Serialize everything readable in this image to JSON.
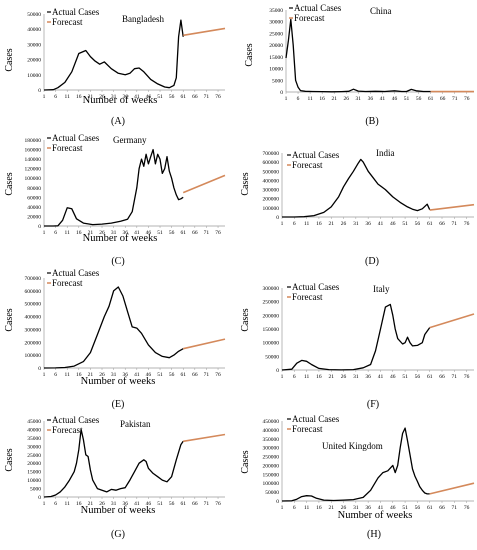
{
  "colors": {
    "actual": "#000000",
    "forecast": "#d4895b",
    "axis": "#9a9a9a"
  },
  "chart_data": [
    {
      "type": "line",
      "label": "(A)",
      "title": "Bangladesh",
      "ylabel": "Cases",
      "xlabel": "Number of weeks",
      "yticks": [
        0,
        10000,
        20000,
        30000,
        40000,
        50000
      ],
      "ylim": [
        0,
        50000
      ],
      "xticks": [
        1,
        6,
        11,
        16,
        21,
        26,
        31,
        36,
        41,
        46,
        51,
        56,
        61,
        66,
        71,
        76
      ],
      "xlim": [
        1,
        79
      ],
      "legend": [
        "Actual Cases",
        "Forecast"
      ],
      "series": [
        {
          "name": "Actual Cases",
          "x": [
            1,
            5,
            7,
            10,
            13,
            16,
            19,
            21,
            23,
            25,
            27,
            30,
            33,
            36,
            38,
            40,
            42,
            44,
            47,
            50,
            53,
            55,
            57,
            58,
            59,
            60,
            61
          ],
          "y": [
            0,
            200,
            1500,
            5000,
            12000,
            24000,
            26000,
            22000,
            19000,
            17000,
            18500,
            14000,
            11000,
            10000,
            11000,
            14000,
            14500,
            12000,
            7000,
            4000,
            2000,
            1500,
            3000,
            8000,
            35000,
            46000,
            35000
          ]
        },
        {
          "name": "Forecast",
          "x": [
            61,
            79
          ],
          "y": [
            36000,
            40500
          ]
        }
      ]
    },
    {
      "type": "line",
      "label": "(B)",
      "title": "China",
      "ylabel": "Cases",
      "xlabel": "",
      "yticks": [
        0,
        5000,
        10000,
        15000,
        20000,
        25000,
        30000,
        35000
      ],
      "ylim": [
        0,
        35000
      ],
      "xticks": [
        1,
        6,
        11,
        16,
        21,
        26,
        31,
        36,
        41,
        46,
        51,
        56,
        61,
        66,
        71,
        76
      ],
      "xlim": [
        1,
        79
      ],
      "legend": [
        "Actual Cases",
        "Forecast"
      ],
      "series": [
        {
          "name": "Actual Cases",
          "x": [
            1,
            2,
            3,
            4,
            5,
            6,
            7,
            9,
            12,
            16,
            20,
            24,
            27,
            29,
            31,
            34,
            38,
            42,
            46,
            49,
            51,
            53,
            55,
            58,
            61
          ],
          "y": [
            14500,
            22000,
            31000,
            20000,
            5000,
            2000,
            600,
            300,
            200,
            150,
            100,
            150,
            300,
            1200,
            400,
            200,
            300,
            200,
            500,
            200,
            200,
            1100,
            500,
            200,
            200
          ]
        },
        {
          "name": "Forecast",
          "x": [
            61,
            79
          ],
          "y": [
            150,
            150
          ]
        }
      ]
    },
    {
      "type": "line",
      "label": "(C)",
      "title": "Germany",
      "ylabel": "Cases",
      "xlabel": "Number of weeks",
      "yticks": [
        0,
        20000,
        40000,
        60000,
        80000,
        100000,
        120000,
        140000,
        160000,
        180000
      ],
      "ylim": [
        0,
        180000
      ],
      "xticks": [
        1,
        6,
        11,
        16,
        21,
        26,
        31,
        36,
        41,
        46,
        51,
        56,
        61,
        66,
        71,
        76
      ],
      "xlim": [
        1,
        79
      ],
      "legend": [
        "Actual Cases",
        "Forecast"
      ],
      "series": [
        {
          "name": "Actual Cases",
          "x": [
            1,
            5,
            7,
            9,
            11,
            13,
            15,
            18,
            22,
            26,
            30,
            34,
            37,
            39,
            41,
            42,
            43,
            44,
            45,
            46,
            47,
            48,
            49,
            50,
            51,
            52,
            53,
            54,
            55,
            56,
            57,
            58,
            59,
            60,
            61
          ],
          "y": [
            0,
            0,
            500,
            12000,
            38000,
            36000,
            15000,
            6000,
            3000,
            4000,
            6000,
            10000,
            14000,
            30000,
            80000,
            120000,
            140000,
            125000,
            150000,
            130000,
            145000,
            160000,
            130000,
            150000,
            140000,
            110000,
            120000,
            145000,
            115000,
            100000,
            80000,
            65000,
            55000,
            57000,
            60000
          ]
        },
        {
          "name": "Forecast",
          "x": [
            61,
            79
          ],
          "y": [
            70000,
            106000
          ]
        }
      ]
    },
    {
      "type": "line",
      "label": "(D)",
      "title": "India",
      "ylabel": "Cases",
      "xlabel": "",
      "yticks": [
        0,
        100000,
        200000,
        300000,
        400000,
        500000,
        600000,
        700000
      ],
      "ylim": [
        0,
        700000
      ],
      "xticks": [
        1,
        6,
        11,
        16,
        21,
        26,
        31,
        36,
        41,
        46,
        51,
        56,
        61,
        66,
        71,
        76
      ],
      "xlim": [
        1,
        79
      ],
      "legend": [
        "Actual Cases",
        "Forecast"
      ],
      "series": [
        {
          "name": "Actual Cases",
          "x": [
            1,
            6,
            10,
            14,
            18,
            21,
            24,
            26,
            28,
            30,
            32,
            33,
            34,
            36,
            38,
            40,
            43,
            46,
            49,
            52,
            54,
            56,
            58,
            60,
            61
          ],
          "y": [
            0,
            500,
            3000,
            15000,
            50000,
            110000,
            220000,
            330000,
            420000,
            500000,
            590000,
            630000,
            600000,
            500000,
            430000,
            360000,
            300000,
            220000,
            160000,
            110000,
            85000,
            70000,
            90000,
            140000,
            80000
          ]
        },
        {
          "name": "Forecast",
          "x": [
            61,
            79
          ],
          "y": [
            75000,
            135000
          ]
        }
      ]
    },
    {
      "type": "line",
      "label": "(E)",
      "title": "",
      "ylabel": "Cases",
      "xlabel": "Number of weeks",
      "yticks": [
        0,
        100000,
        200000,
        300000,
        400000,
        500000,
        600000,
        700000
      ],
      "ylim": [
        0,
        700000
      ],
      "xticks": [
        1,
        6,
        11,
        16,
        21,
        26,
        31,
        36,
        41,
        46,
        51,
        56,
        61,
        66,
        71,
        76
      ],
      "xlim": [
        1,
        79
      ],
      "legend": [
        "Actual Cases",
        "Forecast"
      ],
      "series": [
        {
          "name": "Actual Cases",
          "x": [
            1,
            6,
            10,
            14,
            18,
            21,
            24,
            27,
            29,
            31,
            33,
            35,
            37,
            39,
            41,
            43,
            46,
            49,
            52,
            55,
            57,
            59,
            61
          ],
          "y": [
            0,
            1000,
            4000,
            15000,
            50000,
            120000,
            260000,
            400000,
            480000,
            600000,
            630000,
            560000,
            440000,
            320000,
            310000,
            270000,
            180000,
            120000,
            90000,
            80000,
            100000,
            130000,
            150000
          ]
        },
        {
          "name": "Forecast",
          "x": [
            61,
            79
          ],
          "y": [
            150000,
            225000
          ]
        }
      ]
    },
    {
      "type": "line",
      "label": "(F)",
      "title": "Italy",
      "ylabel": "Cases",
      "xlabel": "",
      "yticks": [
        0,
        50000,
        100000,
        150000,
        200000,
        250000,
        300000
      ],
      "ylim": [
        0,
        300000
      ],
      "xticks": [
        1,
        6,
        11,
        16,
        21,
        26,
        31,
        36,
        41,
        46,
        51,
        56,
        61,
        66,
        71,
        76
      ],
      "xlim": [
        1,
        79
      ],
      "legend": [
        "Actual Cases",
        "Forecast"
      ],
      "series": [
        {
          "name": "Actual Cases",
          "x": [
            1,
            5,
            7,
            9,
            11,
            13,
            16,
            20,
            25,
            30,
            34,
            37,
            39,
            41,
            43,
            45,
            46,
            47,
            48,
            50,
            51,
            52,
            53,
            54,
            56,
            58,
            59,
            61
          ],
          "y": [
            0,
            3000,
            25000,
            35000,
            32000,
            20000,
            6000,
            1500,
            500,
            1500,
            8000,
            20000,
            70000,
            150000,
            230000,
            240000,
            200000,
            150000,
            115000,
            95000,
            100000,
            120000,
            100000,
            88000,
            90000,
            100000,
            130000,
            155000
          ]
        },
        {
          "name": "Forecast",
          "x": [
            61,
            79
          ],
          "y": [
            155000,
            205000
          ]
        }
      ]
    },
    {
      "type": "line",
      "label": "(G)",
      "title": "Pakistan",
      "ylabel": "Cases",
      "xlabel": "Number of weeks",
      "yticks": [
        0,
        5000,
        10000,
        15000,
        20000,
        25000,
        30000,
        35000,
        40000,
        45000
      ],
      "ylim": [
        0,
        45000
      ],
      "xticks": [
        1,
        6,
        11,
        16,
        21,
        26,
        31,
        36,
        41,
        46,
        51,
        56,
        61,
        66,
        71,
        76
      ],
      "xlim": [
        1,
        79
      ],
      "legend": [
        "Actual Cases",
        "Forecast"
      ],
      "series": [
        {
          "name": "Actual Cases",
          "x": [
            1,
            4,
            6,
            8,
            10,
            12,
            14,
            15,
            16,
            17,
            18,
            19,
            20,
            21,
            22,
            24,
            26,
            28,
            30,
            32,
            34,
            36,
            38,
            40,
            42,
            44,
            45,
            46,
            48,
            50,
            52,
            54,
            56,
            58,
            60,
            61
          ],
          "y": [
            0,
            300,
            1200,
            3000,
            6000,
            10000,
            15000,
            20000,
            28000,
            40000,
            34000,
            25000,
            24000,
            16000,
            10000,
            5000,
            4000,
            3000,
            4500,
            4000,
            5000,
            5500,
            10000,
            15000,
            20000,
            22000,
            21000,
            17000,
            14000,
            12000,
            10000,
            9000,
            12000,
            22000,
            31000,
            33000
          ]
        },
        {
          "name": "Forecast",
          "x": [
            61,
            79
          ],
          "y": [
            33000,
            37000
          ]
        }
      ]
    },
    {
      "type": "line",
      "label": "(H)",
      "title": "United Kingdom",
      "ylabel": "Cases",
      "xlabel": "Number of weeks",
      "yticks": [
        0,
        50000,
        100000,
        150000,
        200000,
        250000,
        300000,
        350000,
        400000,
        450000
      ],
      "ylim": [
        0,
        450000
      ],
      "xticks": [
        1,
        6,
        11,
        16,
        21,
        26,
        31,
        36,
        41,
        46,
        51,
        56,
        61,
        66,
        71,
        76
      ],
      "xlim": [
        1,
        79
      ],
      "legend": [
        "Actual Cases",
        "Forecast"
      ],
      "series": [
        {
          "name": "Actual Cases",
          "x": [
            1,
            5,
            7,
            9,
            11,
            13,
            15,
            18,
            22,
            26,
            30,
            34,
            37,
            40,
            42,
            44,
            46,
            47,
            48,
            49,
            50,
            51,
            52,
            53,
            54,
            55,
            56,
            57,
            58,
            59,
            60,
            61
          ],
          "y": [
            0,
            1000,
            10000,
            25000,
            30000,
            28000,
            15000,
            5000,
            3000,
            5000,
            8000,
            20000,
            60000,
            130000,
            160000,
            170000,
            200000,
            160000,
            200000,
            300000,
            380000,
            410000,
            340000,
            260000,
            180000,
            140000,
            110000,
            80000,
            60000,
            45000,
            40000,
            40000
          ]
        },
        {
          "name": "Forecast",
          "x": [
            61,
            79
          ],
          "y": [
            40000,
            100000
          ]
        }
      ]
    }
  ]
}
